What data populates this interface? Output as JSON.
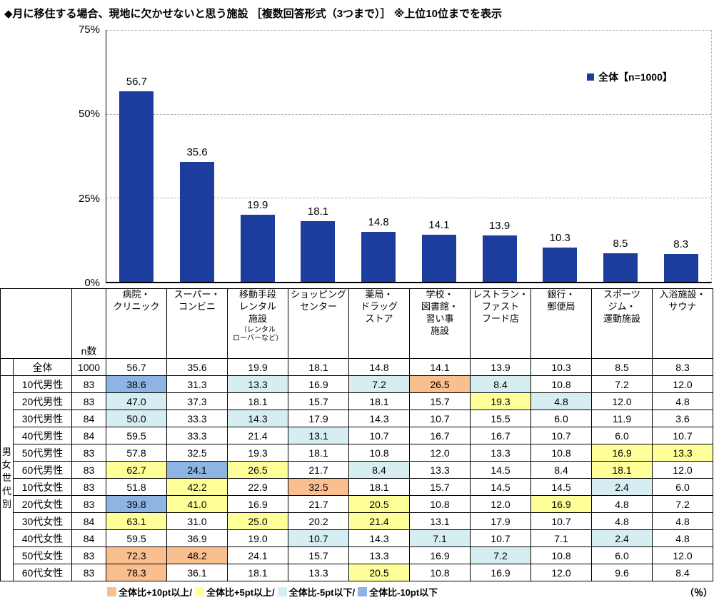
{
  "title": "◆月に移住する場合、現地に欠かせないと思う施設 ［複数回答形式（3つまで）］ ※上位10位までを表示",
  "chart_legend": "全体【n=1000】",
  "colors": {
    "bar": "#1C3C9E",
    "plus10": "#FABF8F",
    "plus5": "#FFFF99",
    "minus5": "#D6EEF2",
    "minus10": "#8DB4E2"
  },
  "chart_data": {
    "type": "bar",
    "title": "◆月に移住する場合、現地に欠かせないと思う施設 ［複数回答形式（3つまで）］ ※上位10位までを表示",
    "series_name": "全体【n=1000】",
    "categories": [
      "病院・クリニック",
      "スーパー・コンビニ",
      "移動手段レンタル施設（レンタルローバーなど）",
      "ショッピングセンター",
      "薬局・ドラッグストア",
      "学校・図書館・習い事施設",
      "レストラン・ファストフード店",
      "銀行・郵便局",
      "スポーツジム・運動施設",
      "入浴施設・サウナ"
    ],
    "values": [
      56.7,
      35.6,
      19.9,
      18.1,
      14.8,
      14.1,
      13.9,
      10.3,
      8.5,
      8.3
    ],
    "ylabel": "%",
    "ylim": [
      0,
      75
    ],
    "yticks": [
      0,
      25,
      50,
      75
    ],
    "grid": "horizontal-dashed",
    "legend_position": "top-right"
  },
  "table": {
    "n_header": "n数",
    "row_group_label": "男女・世代別",
    "columns": [
      {
        "main": "病院・\nクリニック",
        "sub": ""
      },
      {
        "main": "スーパー・\nコンビニ",
        "sub": ""
      },
      {
        "main": "移動手段\nレンタル\n施設",
        "sub": "（レンタル\nローバーなど）"
      },
      {
        "main": "ショッピング\nセンター",
        "sub": ""
      },
      {
        "main": "薬局・\nドラッグ\nストア",
        "sub": ""
      },
      {
        "main": "学校・\n図書館・\n習い事\n施設",
        "sub": ""
      },
      {
        "main": "レストラン・\nファスト\nフード店",
        "sub": ""
      },
      {
        "main": "銀行・\n郵便局",
        "sub": ""
      },
      {
        "main": "スポーツ\nジム・\n運動施設",
        "sub": ""
      },
      {
        "main": "入浴施設・\nサウナ",
        "sub": ""
      }
    ],
    "rows": [
      {
        "label": "全体",
        "n": "1000",
        "values": [
          "56.7",
          "35.6",
          "19.9",
          "18.1",
          "14.8",
          "14.1",
          "13.9",
          "10.3",
          "8.5",
          "8.3"
        ],
        "highlights": [
          null,
          null,
          null,
          null,
          null,
          null,
          null,
          null,
          null,
          null
        ]
      },
      {
        "label": "10代男性",
        "n": "83",
        "values": [
          "38.6",
          "31.3",
          "13.3",
          "16.9",
          "7.2",
          "26.5",
          "8.4",
          "10.8",
          "7.2",
          "12.0"
        ],
        "highlights": [
          "minus10",
          null,
          "minus5",
          null,
          "minus5",
          "plus10",
          "minus5",
          null,
          null,
          null
        ]
      },
      {
        "label": "20代男性",
        "n": "83",
        "values": [
          "47.0",
          "37.3",
          "18.1",
          "15.7",
          "18.1",
          "15.7",
          "19.3",
          "4.8",
          "12.0",
          "4.8"
        ],
        "highlights": [
          "minus5",
          null,
          null,
          null,
          null,
          null,
          "plus5",
          "minus5",
          null,
          null
        ]
      },
      {
        "label": "30代男性",
        "n": "84",
        "values": [
          "50.0",
          "33.3",
          "14.3",
          "17.9",
          "14.3",
          "10.7",
          "15.5",
          "6.0",
          "11.9",
          "3.6"
        ],
        "highlights": [
          "minus5",
          null,
          "minus5",
          null,
          null,
          null,
          null,
          null,
          null,
          null
        ]
      },
      {
        "label": "40代男性",
        "n": "84",
        "values": [
          "59.5",
          "33.3",
          "21.4",
          "13.1",
          "10.7",
          "16.7",
          "16.7",
          "10.7",
          "6.0",
          "10.7"
        ],
        "highlights": [
          null,
          null,
          null,
          "minus5",
          null,
          null,
          null,
          null,
          null,
          null
        ]
      },
      {
        "label": "50代男性",
        "n": "83",
        "values": [
          "57.8",
          "32.5",
          "19.3",
          "18.1",
          "10.8",
          "12.0",
          "13.3",
          "10.8",
          "16.9",
          "13.3"
        ],
        "highlights": [
          null,
          null,
          null,
          null,
          null,
          null,
          null,
          null,
          "plus5",
          "plus5"
        ]
      },
      {
        "label": "60代男性",
        "n": "83",
        "values": [
          "62.7",
          "24.1",
          "26.5",
          "21.7",
          "8.4",
          "13.3",
          "14.5",
          "8.4",
          "18.1",
          "12.0"
        ],
        "highlights": [
          "plus5",
          "minus10",
          "plus5",
          null,
          "minus5",
          null,
          null,
          null,
          "plus5",
          null
        ]
      },
      {
        "label": "10代女性",
        "n": "83",
        "values": [
          "51.8",
          "42.2",
          "22.9",
          "32.5",
          "18.1",
          "15.7",
          "14.5",
          "14.5",
          "2.4",
          "6.0"
        ],
        "highlights": [
          null,
          "plus5",
          null,
          "plus10",
          null,
          null,
          null,
          null,
          "minus5",
          null
        ]
      },
      {
        "label": "20代女性",
        "n": "83",
        "values": [
          "39.8",
          "41.0",
          "16.9",
          "21.7",
          "20.5",
          "10.8",
          "12.0",
          "16.9",
          "4.8",
          "7.2"
        ],
        "highlights": [
          "minus10",
          "plus5",
          null,
          null,
          "plus5",
          null,
          null,
          "plus5",
          null,
          null
        ]
      },
      {
        "label": "30代女性",
        "n": "84",
        "values": [
          "63.1",
          "31.0",
          "25.0",
          "20.2",
          "21.4",
          "13.1",
          "17.9",
          "10.7",
          "4.8",
          "4.8"
        ],
        "highlights": [
          "plus5",
          null,
          "plus5",
          null,
          "plus5",
          null,
          null,
          null,
          null,
          null
        ]
      },
      {
        "label": "40代女性",
        "n": "84",
        "values": [
          "59.5",
          "36.9",
          "19.0",
          "10.7",
          "14.3",
          "7.1",
          "10.7",
          "7.1",
          "2.4",
          "4.8"
        ],
        "highlights": [
          null,
          null,
          null,
          "minus5",
          null,
          "minus5",
          null,
          null,
          "minus5",
          null
        ]
      },
      {
        "label": "50代女性",
        "n": "83",
        "values": [
          "72.3",
          "48.2",
          "24.1",
          "15.7",
          "13.3",
          "16.9",
          "7.2",
          "10.8",
          "6.0",
          "12.0"
        ],
        "highlights": [
          "plus10",
          "plus10",
          null,
          null,
          null,
          null,
          "minus5",
          null,
          null,
          null
        ]
      },
      {
        "label": "60代女性",
        "n": "83",
        "values": [
          "78.3",
          "36.1",
          "18.1",
          "13.3",
          "20.5",
          "10.8",
          "16.9",
          "12.0",
          "9.6",
          "8.4"
        ],
        "highlights": [
          "plus10",
          null,
          null,
          null,
          "plus5",
          null,
          null,
          null,
          null,
          null
        ]
      }
    ]
  },
  "footer": {
    "items": [
      {
        "key": "plus10",
        "label": "全体比+10pt以上/"
      },
      {
        "key": "plus5",
        "label": "全体比+5pt以上/"
      },
      {
        "key": "minus5",
        "label": "全体比-5pt以下/"
      },
      {
        "key": "minus10",
        "label": "全体比-10pt以下"
      }
    ],
    "unit": "（％）"
  }
}
